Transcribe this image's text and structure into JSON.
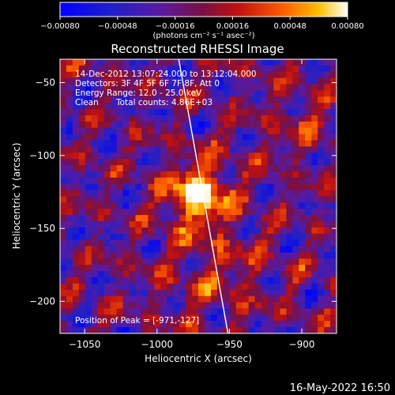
{
  "colorbar": {
    "ticks": [
      "-0.00080",
      "-0.00048",
      "-0.00016",
      "0.00016",
      "0.00048",
      "0.00080"
    ],
    "unit_label": "(photons cm⁻² s⁻¹ asec⁻²)"
  },
  "chart_data": {
    "type": "heatmap",
    "title": "Reconstructed RHESSI Image",
    "xlabel": "Heliocentric X (arcsec)",
    "ylabel": "Heliocentric Y (arcsec)",
    "xlim": [
      -1067,
      -876
    ],
    "ylim": [
      -222,
      -34
    ],
    "x_ticks": [
      -1050,
      -1000,
      -950,
      -900
    ],
    "y_ticks": [
      -50,
      -100,
      -150,
      -200
    ],
    "x_tick_labels": [
      "-1050",
      "-1000",
      "-950",
      "-900"
    ],
    "y_tick_labels": [
      "-50",
      "-100",
      "-150",
      "-200"
    ],
    "clim": [
      -0.0008,
      0.0008
    ],
    "peak": {
      "x": -971,
      "y": -127
    },
    "limb": {
      "x_top": -985,
      "x_bottom": -951
    }
  },
  "annotations": {
    "time_range": "14-Dec-2012 13:07:24.000 to 13:12:04.000",
    "detectors": "Detectors: 3F 4F 5F 6F 7F 8F, Att 0",
    "energy": "Energy Range: 12.0 - 25.0 keV",
    "clean_label": "Clean",
    "total_counts": "Total counts: 4.86E+03",
    "peak_label": "Position of Peak = [-971,-127]"
  },
  "footer": {
    "timestamp": "16-May-2022 16:50"
  }
}
